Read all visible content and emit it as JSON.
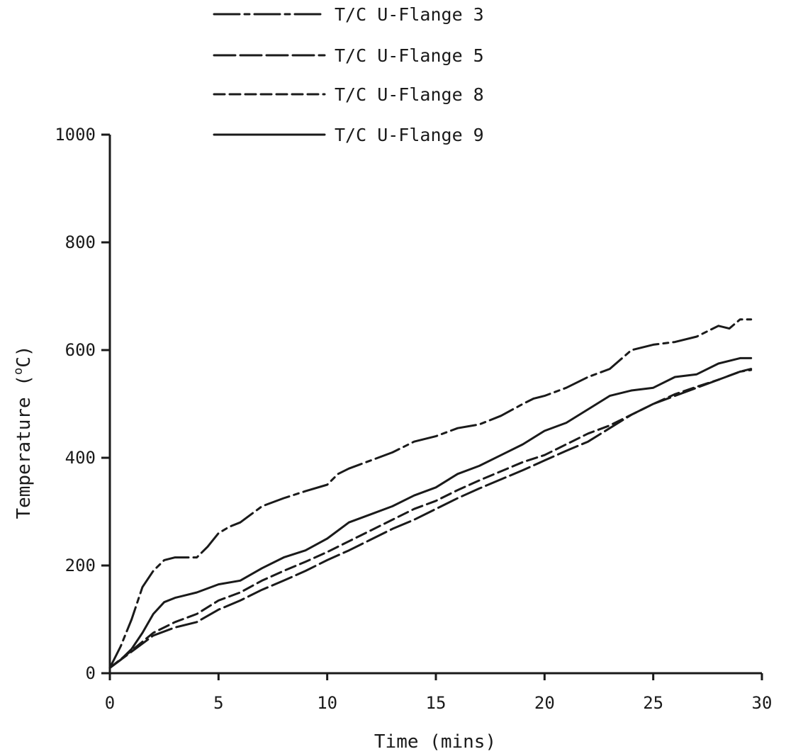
{
  "chart_data": {
    "type": "line",
    "title": "",
    "xlabel": "Time (mins)",
    "ylabel": "Temperature (°C)",
    "ylabel_parts": {
      "main": "Temperature (",
      "sup": "o",
      "unit": "C)"
    },
    "xlim": [
      0,
      30
    ],
    "ylim": [
      0,
      1000
    ],
    "xticks": [
      0,
      5,
      10,
      15,
      20,
      25,
      30
    ],
    "yticks": [
      0,
      200,
      400,
      600,
      800,
      1000
    ],
    "grid": false,
    "legend_placement": "top-center",
    "series": [
      {
        "name": "T/C U-Flange 3",
        "dash": "dash-dot",
        "x": [
          0,
          0.5,
          1,
          1.5,
          2,
          2.5,
          3,
          3.5,
          4,
          4.5,
          5,
          5.5,
          6,
          7,
          8,
          9,
          10,
          10.5,
          11,
          12,
          13,
          14,
          15,
          16,
          17,
          18,
          19,
          19.5,
          20,
          21,
          22,
          23,
          24,
          25,
          26,
          27,
          28,
          28.5,
          29,
          29.5
        ],
        "y": [
          10,
          50,
          100,
          160,
          190,
          210,
          215,
          215,
          215,
          235,
          260,
          272,
          280,
          310,
          325,
          338,
          350,
          370,
          380,
          395,
          410,
          430,
          440,
          455,
          462,
          478,
          500,
          510,
          515,
          530,
          550,
          565,
          600,
          610,
          615,
          625,
          645,
          640,
          657,
          657
        ]
      },
      {
        "name": "T/C U-Flange 5",
        "dash": "long-dash",
        "x": [
          0,
          1,
          2,
          3,
          4,
          5,
          6,
          7,
          8,
          9,
          10,
          11,
          12,
          13,
          14,
          15,
          16,
          17,
          18,
          19,
          20,
          21,
          22,
          23,
          24,
          25,
          26,
          27,
          28,
          29,
          29.5
        ],
        "y": [
          10,
          40,
          70,
          85,
          95,
          118,
          135,
          155,
          172,
          190,
          210,
          228,
          248,
          268,
          285,
          305,
          325,
          343,
          360,
          377,
          395,
          413,
          430,
          455,
          480,
          500,
          515,
          530,
          545,
          560,
          563
        ]
      },
      {
        "name": "T/C U-Flange 8",
        "dash": "dashed",
        "x": [
          0,
          1,
          2,
          3,
          4,
          5,
          6,
          7,
          8,
          9,
          10,
          11,
          12,
          13,
          14,
          15,
          16,
          17,
          18,
          19,
          20,
          21,
          22,
          23,
          24,
          25,
          26,
          27,
          28,
          29,
          29.5
        ],
        "y": [
          10,
          42,
          75,
          95,
          110,
          135,
          150,
          172,
          190,
          207,
          225,
          245,
          265,
          285,
          305,
          320,
          340,
          358,
          375,
          392,
          405,
          425,
          445,
          460,
          480,
          500,
          518,
          532,
          545,
          560,
          565
        ]
      },
      {
        "name": "T/C U-Flange 9",
        "dash": "solid",
        "x": [
          0,
          0.5,
          1,
          1.5,
          2,
          2.5,
          3,
          3.5,
          4,
          5,
          6,
          7,
          8,
          9,
          10,
          11,
          12,
          13,
          14,
          15,
          16,
          17,
          18,
          19,
          20,
          21,
          22,
          23,
          24,
          25,
          26,
          27,
          28,
          29,
          29.5
        ],
        "y": [
          10,
          25,
          45,
          75,
          110,
          132,
          140,
          145,
          150,
          165,
          172,
          195,
          215,
          228,
          250,
          280,
          295,
          310,
          330,
          345,
          370,
          385,
          405,
          425,
          450,
          465,
          490,
          515,
          525,
          530,
          550,
          555,
          575,
          585,
          585
        ]
      }
    ]
  }
}
